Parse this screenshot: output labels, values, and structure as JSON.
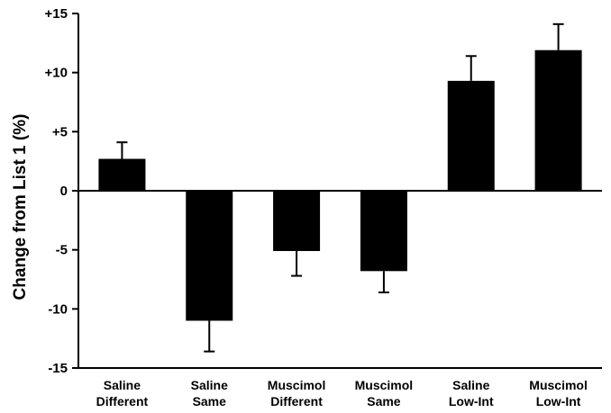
{
  "chart_data": {
    "type": "bar",
    "title": "",
    "xlabel": "",
    "ylabel": "Change from List 1 (%)",
    "ylim": [
      -15,
      15
    ],
    "yticks": [
      15,
      10,
      5,
      0,
      -5,
      -10,
      -15
    ],
    "ytick_labels": [
      "+15",
      "+10",
      "+5",
      "0",
      "-5",
      "-10",
      "-15"
    ],
    "categories": [
      [
        "Saline",
        "Different"
      ],
      [
        "Saline",
        "Same"
      ],
      [
        "Muscimol",
        "Different"
      ],
      [
        "Muscimol",
        "Same"
      ],
      [
        "Saline",
        "Low-Int"
      ],
      [
        "Muscimol",
        "Low-Int"
      ]
    ],
    "values": [
      2.7,
      -11.0,
      -5.1,
      -6.8,
      9.3,
      11.9
    ],
    "errors": [
      1.4,
      2.6,
      2.1,
      1.8,
      2.1,
      2.2
    ],
    "bar_color": "#000000",
    "grid": false,
    "legend": "none"
  }
}
